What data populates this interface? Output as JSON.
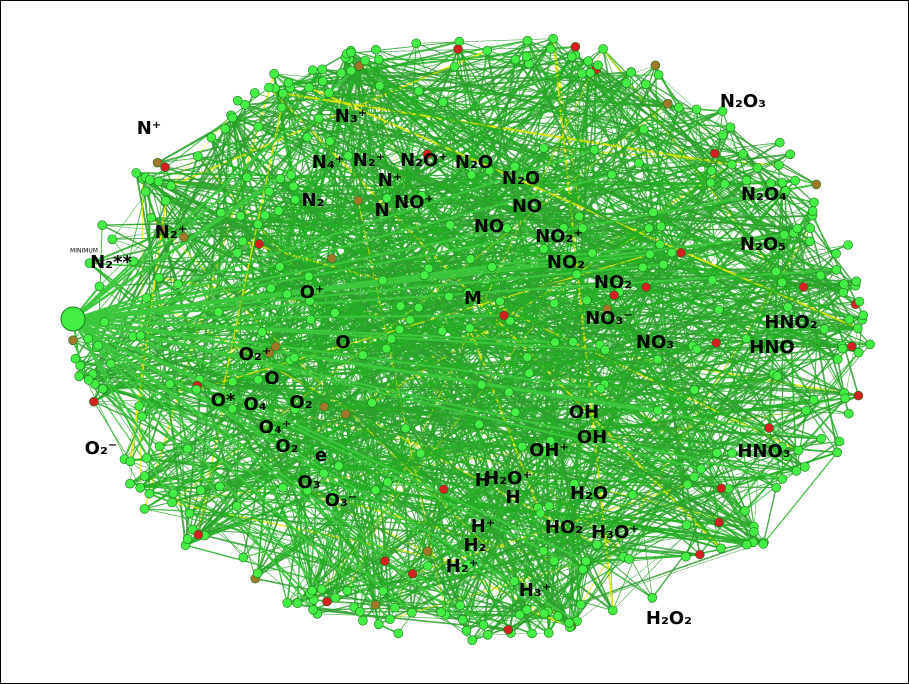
{
  "nodes": [
    "N₂O₃",
    "N⁺",
    "N₃⁺",
    "N₄⁺",
    "N₂⁺",
    "N₂O⁺",
    "N₂O",
    "N⁺",
    "N₂O",
    "N₂",
    "N",
    "NO⁺",
    "NO",
    "N₂O₄",
    "N₂⁺",
    "NO",
    "NO₂⁺",
    "N₂O₅",
    "N₂**",
    "NO₂",
    "NO₂",
    "M",
    "O⁺",
    "NO₃⁻",
    "HNO₂",
    "NO₃",
    "O",
    "HNO",
    "O₂⁺",
    "O",
    "O*",
    "O₄",
    "O₂",
    "O₄⁺",
    "OH",
    "OH",
    "O₂⁻",
    "O₂",
    "e",
    "OH⁺",
    "HNO₃",
    "H₂O⁺",
    "H⁻",
    "H",
    "O₃",
    "H₂O",
    "O₃⁻",
    "H⁺",
    "HO₂",
    "H₃O⁺",
    "H₂",
    "H₂⁺",
    "H₃⁺",
    "H₂O₂"
  ],
  "small_labels": [
    "MINIMUM"
  ]
}
